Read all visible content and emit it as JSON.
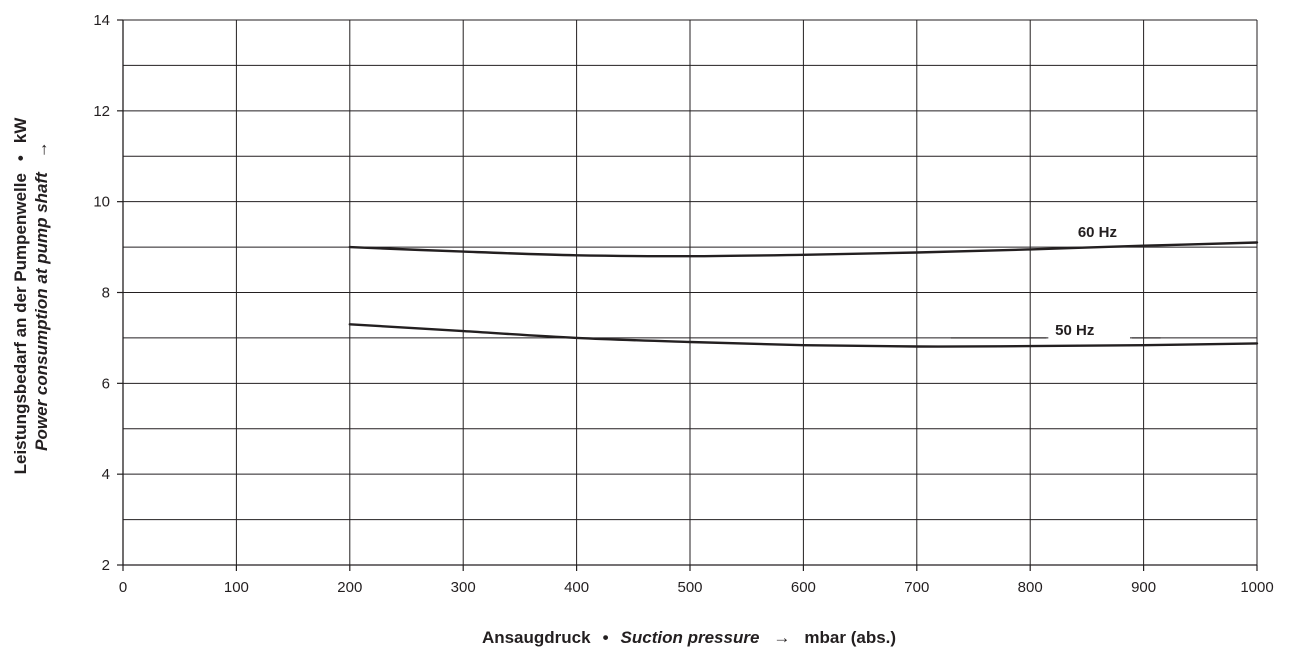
{
  "chart_data": {
    "type": "line",
    "title": "",
    "xlabel": {
      "de": "Ansaugdruck",
      "sep": "•",
      "en": "Suction pressure",
      "arrow": "→",
      "unit": "mbar (abs.)"
    },
    "ylabel": {
      "de": "Leistungsbedarf an der Pumpenwelle",
      "sep": "•",
      "en": "Power consumption at pump shaft",
      "arrow": "→",
      "unit": "kW"
    },
    "xlim": [
      0,
      1000
    ],
    "ylim": [
      2,
      14
    ],
    "x_ticks": [
      "0",
      "100",
      "200",
      "300",
      "400",
      "500",
      "600",
      "700",
      "800",
      "900",
      "1000"
    ],
    "y_ticks": [
      "2",
      "4",
      "6",
      "8",
      "10",
      "12",
      "14"
    ],
    "grid": true,
    "series": [
      {
        "name": "60 Hz",
        "x": [
          200,
          300,
          400,
          500,
          600,
          700,
          800,
          900,
          1000
        ],
        "y": [
          9.0,
          8.9,
          8.82,
          8.8,
          8.83,
          8.88,
          8.95,
          9.03,
          9.1
        ]
      },
      {
        "name": "50 Hz",
        "x": [
          200,
          300,
          400,
          500,
          600,
          700,
          800,
          900,
          1000
        ],
        "y": [
          7.3,
          7.15,
          7.0,
          6.91,
          6.84,
          6.81,
          6.82,
          6.84,
          6.88
        ]
      }
    ]
  }
}
